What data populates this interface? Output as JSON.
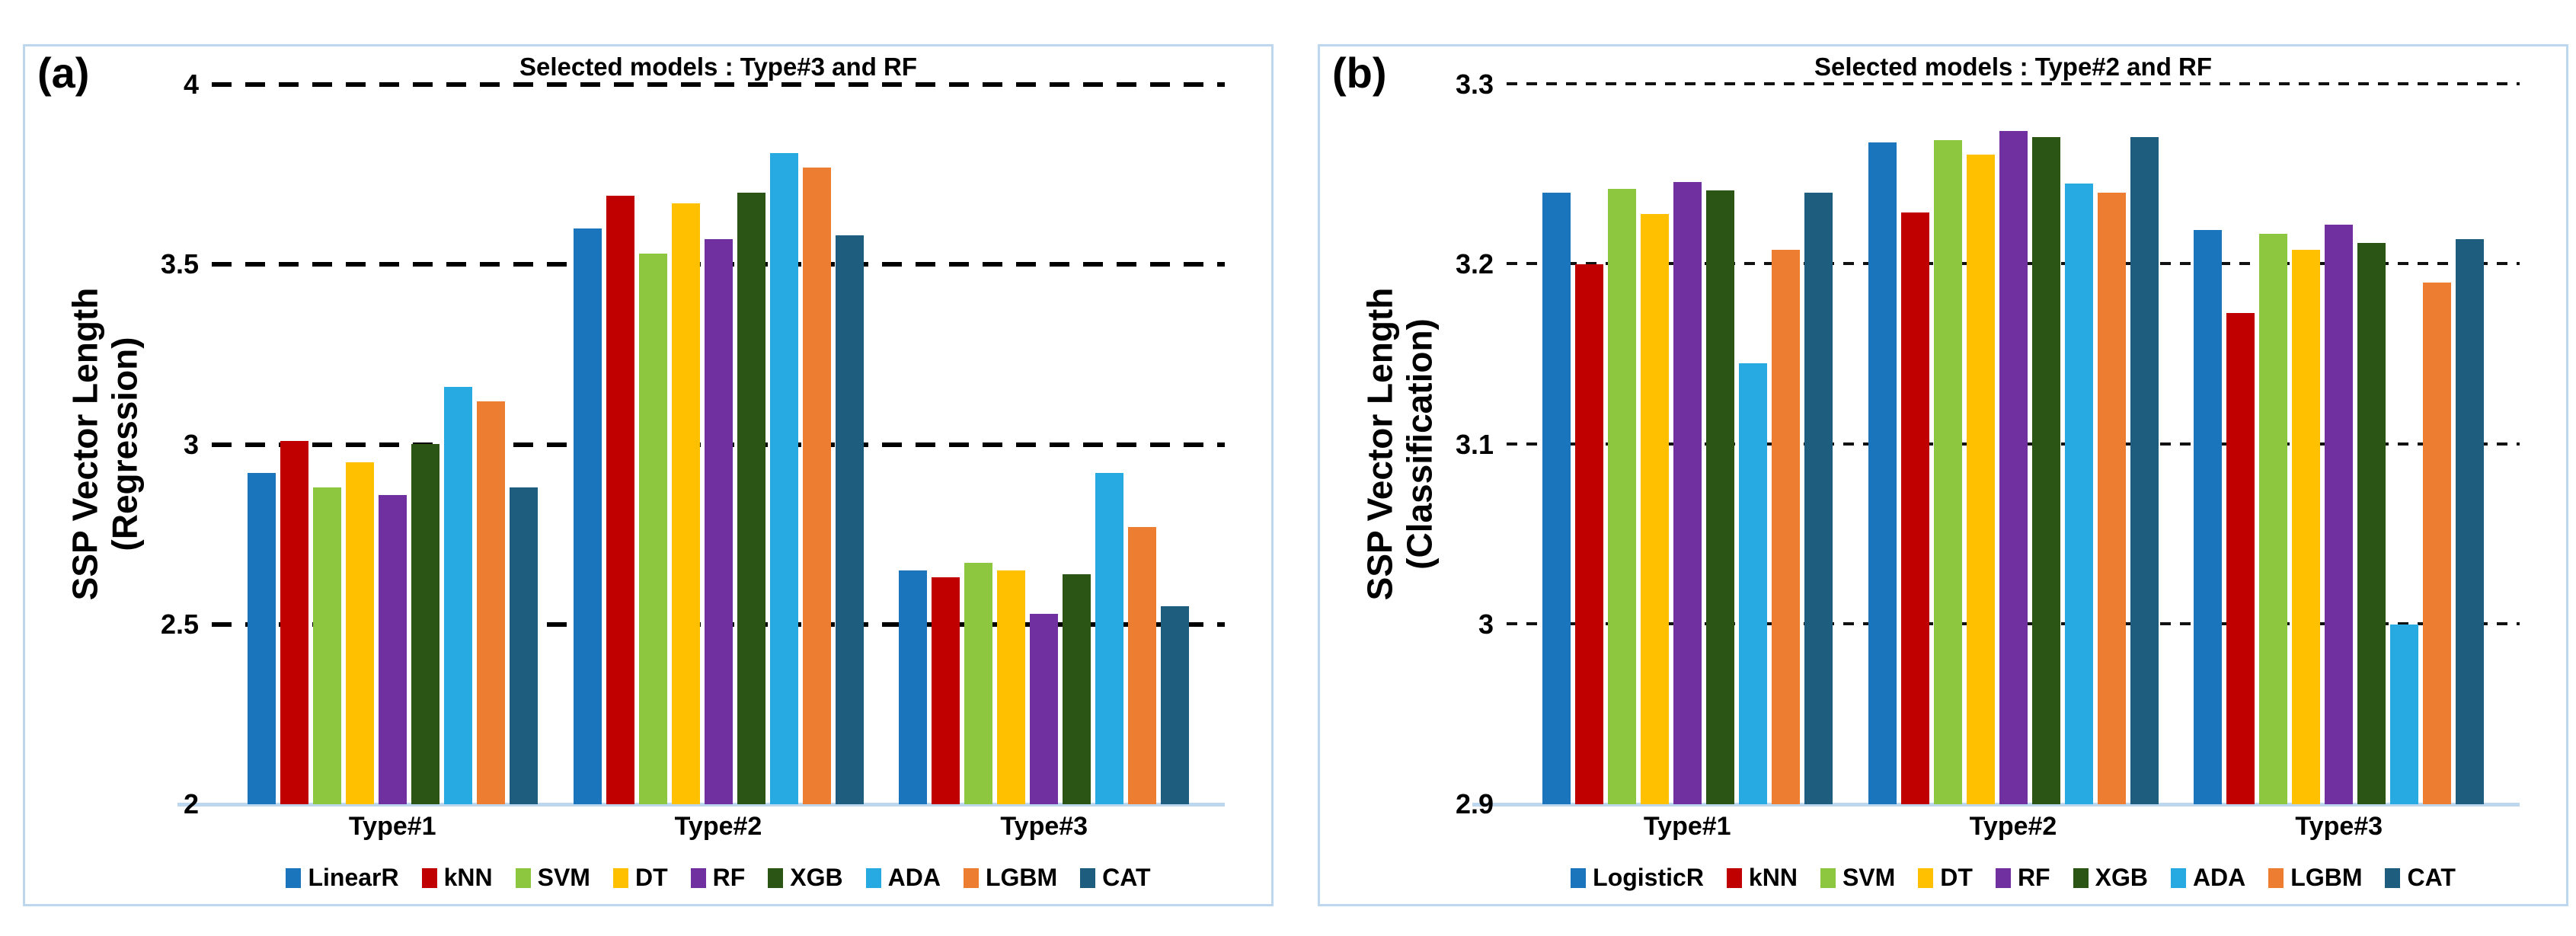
{
  "page": {
    "background": "#ffffff",
    "panel_border_color": "#BDD7EE"
  },
  "palette": [
    "#1B75BC",
    "#C00000",
    "#8DC63F",
    "#FFC000",
    "#7030A0",
    "#2B5514",
    "#27AAE1",
    "#ED7D31",
    "#1F5D7E"
  ],
  "chart_data": [
    {
      "type": "bar",
      "panel_label": "(a)",
      "title": "Selected models : Type#3 and RF",
      "ylabel_line1": "SSP Vector Length",
      "ylabel_line2": "(Regression)",
      "ymin": 2,
      "ymax": 4,
      "yticks": [
        "4",
        "3.5",
        "3",
        "2.5",
        "2"
      ],
      "grid": "dashed-horizontal",
      "legend_position": "bottom",
      "categories": [
        "Type#1",
        "Type#2",
        "Type#3"
      ],
      "series": [
        {
          "name": "LinearR",
          "values": [
            2.92,
            3.6,
            2.65
          ]
        },
        {
          "name": "kNN",
          "values": [
            3.01,
            3.69,
            2.63
          ]
        },
        {
          "name": "SVM",
          "values": [
            2.88,
            3.53,
            2.67
          ]
        },
        {
          "name": "DT",
          "values": [
            2.95,
            3.67,
            2.65
          ]
        },
        {
          "name": "RF",
          "values": [
            2.86,
            3.57,
            2.53
          ]
        },
        {
          "name": "XGB",
          "values": [
            3.0,
            3.7,
            2.64
          ]
        },
        {
          "name": "ADA",
          "values": [
            3.16,
            3.81,
            2.92
          ]
        },
        {
          "name": "LGBM",
          "values": [
            3.12,
            3.77,
            2.77
          ]
        },
        {
          "name": "CAT",
          "values": [
            2.88,
            3.58,
            2.55
          ]
        }
      ]
    },
    {
      "type": "bar",
      "panel_label": "(b)",
      "title": "Selected models : Type#2 and RF",
      "ylabel_line1": "SSP Vector Length",
      "ylabel_line2": "(Classification)",
      "ymin": 2.9,
      "ymax": 3.3,
      "yticks": [
        "3.3",
        "3.2",
        "3.1",
        "3",
        "2.9"
      ],
      "grid": "dashed-horizontal",
      "legend_position": "bottom",
      "categories": [
        "Type#1",
        "Type#2",
        "Type#3"
      ],
      "series": [
        {
          "name": "LogisticR",
          "values": [
            3.24,
            3.268,
            3.219
          ]
        },
        {
          "name": "kNN",
          "values": [
            3.2,
            3.229,
            3.173
          ]
        },
        {
          "name": "SVM",
          "values": [
            3.242,
            3.269,
            3.217
          ]
        },
        {
          "name": "DT",
          "values": [
            3.228,
            3.261,
            3.208
          ]
        },
        {
          "name": "RF",
          "values": [
            3.246,
            3.274,
            3.222
          ]
        },
        {
          "name": "XGB",
          "values": [
            3.241,
            3.271,
            3.212
          ]
        },
        {
          "name": "ADA",
          "values": [
            3.145,
            3.245,
            3.0
          ]
        },
        {
          "name": "LGBM",
          "values": [
            3.208,
            3.24,
            3.19
          ]
        },
        {
          "name": "CAT",
          "values": [
            3.24,
            3.271,
            3.214
          ]
        }
      ]
    }
  ]
}
